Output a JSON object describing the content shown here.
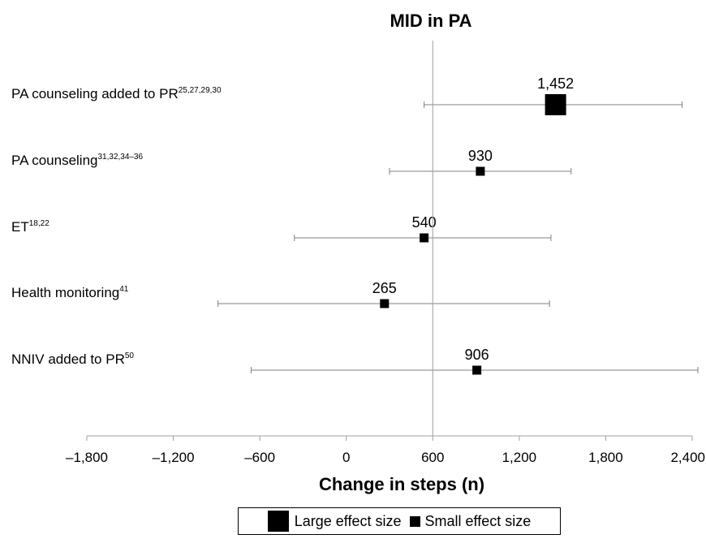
{
  "chart_data": {
    "type": "forest",
    "title": "MID in PA",
    "xlabel": "Change in steps (n)",
    "xlim": [
      -1800,
      2400
    ],
    "xticks": [
      "–1,800",
      "–1,200",
      "–600",
      "0",
      "600",
      "1,200",
      "1,800",
      "2,400"
    ],
    "xtick_values": [
      -1800,
      -1200,
      -600,
      0,
      600,
      1200,
      1800,
      2400
    ],
    "reference_line": 600,
    "rows": [
      {
        "label": "PA counseling added to PR",
        "sup": "25,27,29,30",
        "value": 1452,
        "value_label": "1,452",
        "ci_low": 540,
        "ci_high": 2330,
        "effect": "large"
      },
      {
        "label": "PA counseling",
        "sup": "31,32,34–36",
        "value": 930,
        "value_label": "930",
        "ci_low": 300,
        "ci_high": 1560,
        "effect": "small"
      },
      {
        "label": "ET",
        "sup": "18,22",
        "value": 540,
        "value_label": "540",
        "ci_low": -360,
        "ci_high": 1420,
        "effect": "small"
      },
      {
        "label": "Health monitoring",
        "sup": "41",
        "value": 265,
        "value_label": "265",
        "ci_low": -890,
        "ci_high": 1410,
        "effect": "small"
      },
      {
        "label": "NNIV added to PR",
        "sup": "50",
        "value": 906,
        "value_label": "906",
        "ci_low": -660,
        "ci_high": 2450,
        "effect": "small"
      }
    ],
    "legend": {
      "position": "bottom",
      "items": [
        {
          "label": "Large effect size",
          "marker": "large-square"
        },
        {
          "label": "Small effect size",
          "marker": "small-square"
        }
      ]
    },
    "colors": {
      "marker": "#000000",
      "ci": "#808080",
      "axis": "#a0a0a0"
    }
  }
}
